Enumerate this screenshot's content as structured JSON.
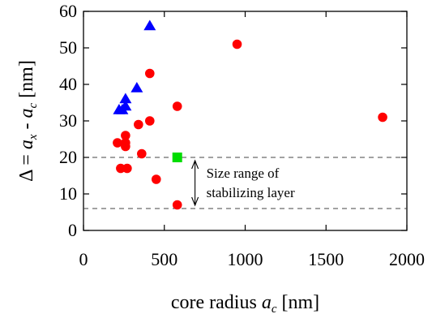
{
  "chart_data": {
    "type": "scatter",
    "title": "",
    "xlabel": "core radius a_c [nm]",
    "ylabel": "Δ = a_x - a_c [nm]",
    "xlabel_parts": {
      "prefix": "core radius ",
      "var": "a",
      "sub": "c",
      "suffix": " [nm]"
    },
    "ylabel_parts": {
      "lead": "Δ = ",
      "var1": "a",
      "sub1": "x",
      "mid": " - ",
      "var2": "a",
      "sub2": "c",
      "suffix": " [nm]"
    },
    "xlim": [
      0,
      2000
    ],
    "ylim": [
      0,
      60
    ],
    "xticks": [
      "0",
      "500",
      "1000",
      "1500",
      "2000"
    ],
    "xtick_values": [
      0,
      500,
      1000,
      1500,
      2000
    ],
    "yticks": [
      "0",
      "10",
      "20",
      "30",
      "40",
      "50",
      "60"
    ],
    "ytick_values": [
      0,
      10,
      20,
      30,
      40,
      50,
      60
    ],
    "grid": false,
    "legend": "none",
    "reference_lines": [
      {
        "y": 20,
        "style": "dashed"
      },
      {
        "y": 6,
        "style": "dashed"
      }
    ],
    "annotation": {
      "lines": [
        "Size range of",
        "stabilizing layer"
      ],
      "arrow_x": 800,
      "arrow_from": 20,
      "arrow_to": 6
    },
    "series": [
      {
        "marker": "circle",
        "color": "#ff0000",
        "x": [
          950,
          1850,
          410,
          580,
          410,
          340,
          260,
          260,
          260,
          210,
          360,
          230,
          270,
          450,
          580
        ],
        "y": [
          51,
          31,
          43,
          34,
          30,
          29,
          26,
          24,
          23,
          24,
          21,
          17,
          17,
          14,
          7
        ]
      },
      {
        "marker": "triangle",
        "color": "#0000ff",
        "x": [
          410,
          330,
          260,
          260,
          240,
          220
        ],
        "y": [
          56,
          39,
          36,
          34,
          33,
          33
        ]
      },
      {
        "marker": "square",
        "color": "#00dd00",
        "x": [
          580
        ],
        "y": [
          20
        ]
      }
    ]
  }
}
